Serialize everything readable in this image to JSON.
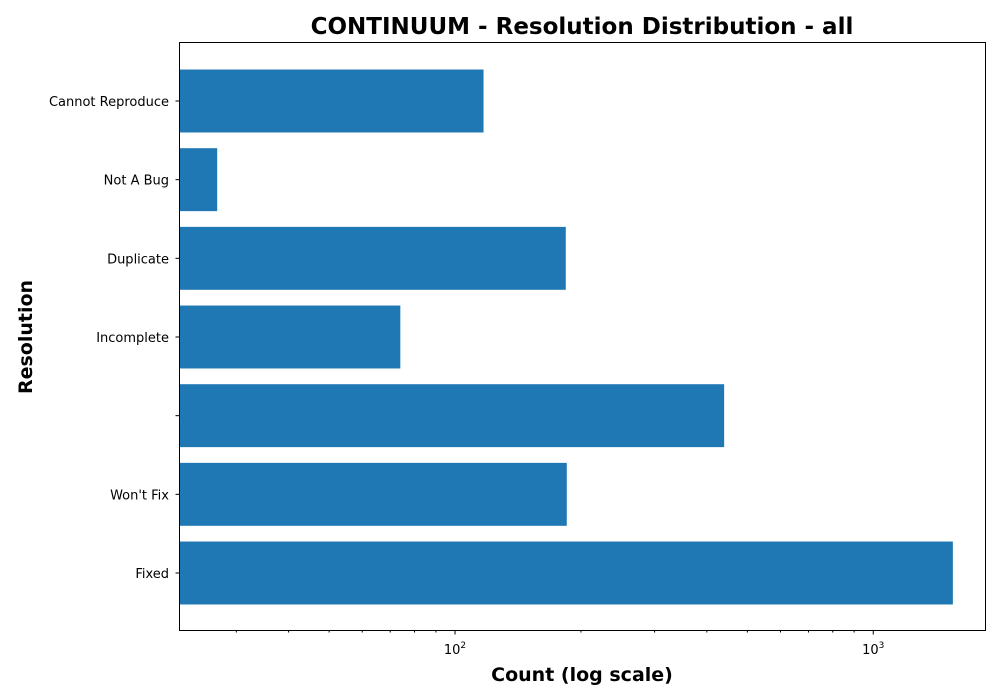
{
  "chart_data": {
    "type": "bar",
    "orientation": "horizontal",
    "title": "CONTINUUM - Resolution Distribution - all",
    "xlabel": "Count (log scale)",
    "ylabel": "Resolution",
    "x_scale": "log",
    "xlim": [
      22,
      1850
    ],
    "categories": [
      "Fixed",
      "Won't Fix",
      "",
      "Incomplete",
      "Duplicate",
      "Not A Bug",
      "Cannot Reproduce"
    ],
    "values": [
      1550,
      185,
      440,
      74,
      184,
      27,
      117
    ],
    "x_major_ticks": [
      {
        "value": 100,
        "base": "10",
        "exp": "2"
      },
      {
        "value": 1000,
        "base": "10",
        "exp": "3"
      }
    ],
    "grid": false,
    "legend": "none",
    "bar_color": "#1f77b4"
  }
}
